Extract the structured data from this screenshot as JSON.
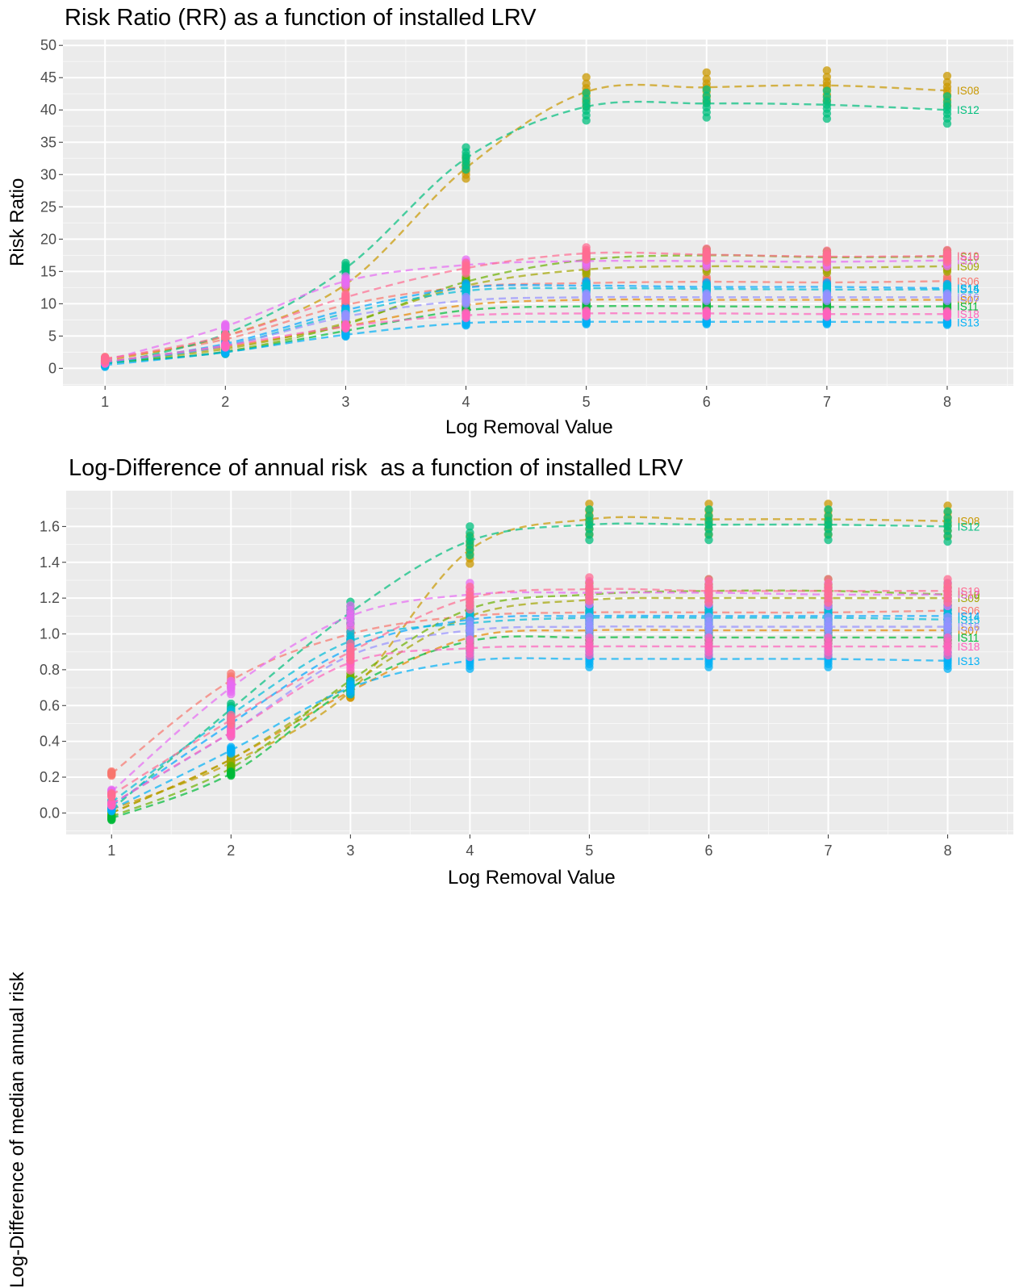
{
  "chart_data": [
    {
      "type": "line",
      "title": "Risk Ratio (RR) as a function of installed LRV",
      "xlabel": "Log Removal Value",
      "ylabel": "Risk Ratio",
      "xlim": [
        0.65,
        8.55
      ],
      "ylim": [
        -2.7,
        50.9
      ],
      "xticks": [
        1,
        2,
        3,
        4,
        5,
        6,
        7,
        8
      ],
      "yticks": [
        0,
        5,
        10,
        15,
        20,
        25,
        30,
        35,
        40,
        45,
        50
      ],
      "grid": true,
      "legend": "none",
      "x": [
        1,
        2,
        3,
        4,
        5,
        6,
        7,
        8
      ],
      "series": [
        {
          "name": "IS06",
          "color": "#F8766D",
          "values": [
            1.5,
            4.5,
            9.8,
            12.6,
            13.2,
            13.4,
            13.3,
            13.5
          ]
        },
        {
          "name": "IS07",
          "color": "#E58700",
          "values": [
            1.0,
            3.3,
            6.5,
            9.8,
            10.6,
            10.6,
            10.6,
            10.6
          ]
        },
        {
          "name": "IS08",
          "color": "#C99800",
          "values": [
            1.2,
            5.0,
            13.0,
            31.0,
            42.8,
            43.5,
            43.8,
            43.0
          ]
        },
        {
          "name": "IS09",
          "color": "#A3A500",
          "values": [
            1.0,
            3.0,
            7.0,
            12.8,
            15.3,
            15.8,
            15.6,
            15.8
          ]
        },
        {
          "name": "IS10",
          "color": "#6BB100",
          "values": [
            0.9,
            2.6,
            6.8,
            13.4,
            16.8,
            17.5,
            17.2,
            17.3
          ]
        },
        {
          "name": "IS11",
          "color": "#00BA38",
          "values": [
            0.8,
            2.5,
            5.8,
            9.0,
            9.6,
            9.6,
            9.5,
            9.6
          ]
        },
        {
          "name": "IS12",
          "color": "#00BF7D",
          "values": [
            0.6,
            5.3,
            15.5,
            32.5,
            40.5,
            41.0,
            40.8,
            40.0
          ]
        },
        {
          "name": "IS13",
          "color": "#00B0F6",
          "values": [
            0.5,
            2.5,
            5.2,
            7.0,
            7.2,
            7.2,
            7.2,
            7.1
          ]
        },
        {
          "name": "IS14",
          "color": "#00A5FF",
          "values": [
            0.9,
            3.8,
            9.0,
            12.5,
            12.8,
            12.6,
            12.6,
            12.4
          ]
        },
        {
          "name": "IS15",
          "color": "#00BCD8",
          "values": [
            0.8,
            3.5,
            8.5,
            12.0,
            12.4,
            12.3,
            12.2,
            12.2
          ]
        },
        {
          "name": "IS16",
          "color": "#9590FF",
          "values": [
            1.0,
            3.5,
            8.0,
            10.5,
            11.0,
            11.0,
            11.0,
            11.0
          ]
        },
        {
          "name": "IS17",
          "color": "#E76BF3",
          "values": [
            1.2,
            6.5,
            13.5,
            16.0,
            16.6,
            16.6,
            16.5,
            16.7
          ]
        },
        {
          "name": "IS18",
          "color": "#FF62BC",
          "values": [
            1.0,
            3.5,
            6.5,
            8.2,
            8.5,
            8.5,
            8.4,
            8.4
          ]
        },
        {
          "name": "IS19",
          "color": "#FF6C91",
          "values": [
            1.4,
            5.0,
            11.0,
            15.5,
            17.8,
            17.6,
            17.3,
            17.4
          ]
        }
      ]
    },
    {
      "type": "line",
      "title": "Log-Difference of annual risk  as a function of installed LRV",
      "xlabel": "Log Removal Value",
      "ylabel": "Log-Difference of median annual risk",
      "xlim": [
        0.62,
        8.55
      ],
      "ylim": [
        -0.12,
        1.8
      ],
      "xticks": [
        1,
        2,
        3,
        4,
        5,
        6,
        7,
        8
      ],
      "yticks": [
        0.0,
        0.2,
        0.4,
        0.6,
        0.8,
        1.0,
        1.2,
        1.4,
        1.6
      ],
      "grid": true,
      "legend": "none",
      "x": [
        1,
        2,
        3,
        4,
        5,
        6,
        7,
        8
      ],
      "series": [
        {
          "name": "IS06",
          "color": "#F8766D",
          "values": [
            0.22,
            0.74,
            1.0,
            1.1,
            1.12,
            1.12,
            1.12,
            1.13
          ]
        },
        {
          "name": "IS07",
          "color": "#E58700",
          "values": [
            0.0,
            0.3,
            0.68,
            0.98,
            1.02,
            1.02,
            1.02,
            1.02
          ]
        },
        {
          "name": "IS08",
          "color": "#C99800",
          "values": [
            0.02,
            0.28,
            0.68,
            1.47,
            1.64,
            1.64,
            1.64,
            1.63
          ]
        },
        {
          "name": "IS09",
          "color": "#A3A500",
          "values": [
            0.0,
            0.3,
            0.72,
            1.1,
            1.19,
            1.2,
            1.2,
            1.2
          ]
        },
        {
          "name": "IS10",
          "color": "#6BB100",
          "values": [
            -0.02,
            0.25,
            0.74,
            1.14,
            1.22,
            1.24,
            1.24,
            1.22
          ]
        },
        {
          "name": "IS11",
          "color": "#00BA38",
          "values": [
            -0.03,
            0.22,
            0.7,
            0.96,
            0.98,
            0.98,
            0.98,
            0.98
          ]
        },
        {
          "name": "IS12",
          "color": "#00BF7D",
          "values": [
            0.02,
            0.58,
            1.12,
            1.52,
            1.61,
            1.61,
            1.61,
            1.6
          ]
        },
        {
          "name": "IS13",
          "color": "#00B0F6",
          "values": [
            0.02,
            0.35,
            0.7,
            0.85,
            0.86,
            0.86,
            0.86,
            0.85
          ]
        },
        {
          "name": "IS14",
          "color": "#00A5FF",
          "values": [
            0.04,
            0.5,
            0.92,
            1.08,
            1.1,
            1.1,
            1.1,
            1.1
          ]
        },
        {
          "name": "IS15",
          "color": "#00BCD8",
          "values": [
            0.06,
            0.55,
            0.96,
            1.06,
            1.09,
            1.09,
            1.09,
            1.08
          ]
        },
        {
          "name": "IS16",
          "color": "#9590FF",
          "values": [
            0.05,
            0.45,
            0.88,
            1.02,
            1.04,
            1.04,
            1.04,
            1.04
          ]
        },
        {
          "name": "IS17",
          "color": "#E76BF3",
          "values": [
            0.12,
            0.7,
            1.1,
            1.22,
            1.23,
            1.23,
            1.22,
            1.22
          ]
        },
        {
          "name": "IS18",
          "color": "#FF62BC",
          "values": [
            0.05,
            0.45,
            0.84,
            0.92,
            0.93,
            0.93,
            0.93,
            0.93
          ]
        },
        {
          "name": "IS19",
          "color": "#FF6C91",
          "values": [
            0.1,
            0.52,
            0.9,
            1.2,
            1.25,
            1.24,
            1.24,
            1.24
          ]
        }
      ]
    }
  ]
}
